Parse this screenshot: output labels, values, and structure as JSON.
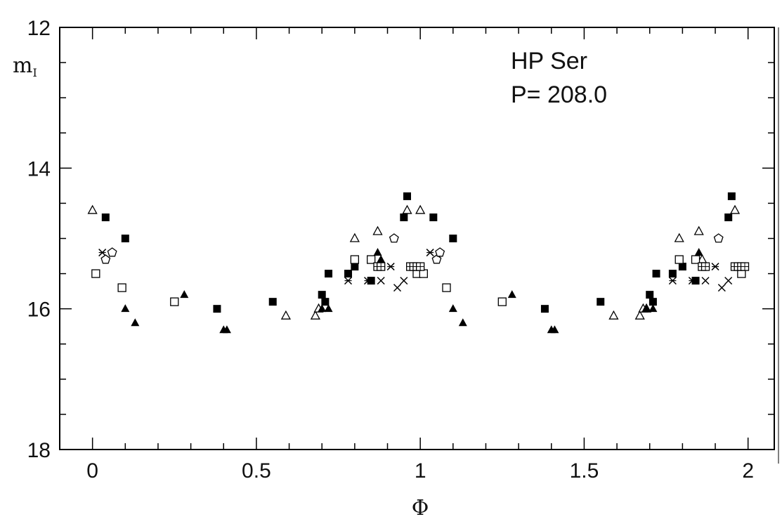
{
  "chart_data": {
    "type": "scatter",
    "title": "",
    "annotations": {
      "star": "HP Ser",
      "period": "P= 208.0"
    },
    "xlabel": "Φ",
    "ylabel": {
      "main": "m",
      "sub": "I"
    },
    "xlim": [
      -0.1,
      2.08
    ],
    "ylim": [
      18,
      12
    ],
    "y_inverted": true,
    "x_ticks": [
      "0",
      "0.5",
      "1",
      "1.5",
      "2"
    ],
    "y_ticks": [
      "12",
      "14",
      "16",
      "18"
    ],
    "grid": false,
    "series": [
      {
        "marker": "filled-square",
        "points": [
          [
            0.04,
            14.7
          ],
          [
            0.1,
            15.0
          ],
          [
            0.38,
            16.0
          ],
          [
            0.55,
            15.9
          ],
          [
            0.7,
            15.8
          ],
          [
            0.71,
            15.9
          ],
          [
            0.72,
            15.5
          ],
          [
            0.78,
            15.5
          ],
          [
            0.8,
            15.4
          ],
          [
            0.85,
            15.6
          ],
          [
            0.95,
            14.7
          ],
          [
            0.96,
            14.4
          ],
          [
            1.04,
            14.7
          ],
          [
            1.1,
            15.0
          ],
          [
            1.38,
            16.0
          ],
          [
            1.55,
            15.9
          ],
          [
            1.7,
            15.8
          ],
          [
            1.71,
            15.9
          ],
          [
            1.72,
            15.5
          ],
          [
            1.77,
            15.5
          ],
          [
            1.8,
            15.4
          ],
          [
            1.84,
            15.6
          ],
          [
            1.94,
            14.7
          ],
          [
            1.95,
            14.4
          ]
        ]
      },
      {
        "marker": "open-triangle",
        "points": [
          [
            0.0,
            14.6
          ],
          [
            0.59,
            16.1
          ],
          [
            0.68,
            16.1
          ],
          [
            0.69,
            16.0
          ],
          [
            0.8,
            15.0
          ],
          [
            0.87,
            14.9
          ],
          [
            0.96,
            14.6
          ],
          [
            1.0,
            14.6
          ],
          [
            1.59,
            16.1
          ],
          [
            1.67,
            16.1
          ],
          [
            1.68,
            16.0
          ],
          [
            1.69,
            16.0
          ],
          [
            1.79,
            15.0
          ],
          [
            1.85,
            14.9
          ],
          [
            1.86,
            15.3
          ],
          [
            1.96,
            14.6
          ]
        ]
      },
      {
        "marker": "filled-triangle",
        "points": [
          [
            0.1,
            16.0
          ],
          [
            0.13,
            16.2
          ],
          [
            0.28,
            15.8
          ],
          [
            0.4,
            16.3
          ],
          [
            0.41,
            16.3
          ],
          [
            0.7,
            16.0
          ],
          [
            0.72,
            16.0
          ],
          [
            0.87,
            15.2
          ],
          [
            0.88,
            15.3
          ],
          [
            1.1,
            16.0
          ],
          [
            1.13,
            16.2
          ],
          [
            1.28,
            15.8
          ],
          [
            1.4,
            16.3
          ],
          [
            1.41,
            16.3
          ],
          [
            1.69,
            16.0
          ],
          [
            1.71,
            16.0
          ],
          [
            1.85,
            15.2
          ]
        ]
      },
      {
        "marker": "open-square",
        "points": [
          [
            0.01,
            15.5
          ],
          [
            0.09,
            15.7
          ],
          [
            0.25,
            15.9
          ],
          [
            0.8,
            15.3
          ],
          [
            0.85,
            15.3
          ],
          [
            0.99,
            15.5
          ],
          [
            1.01,
            15.5
          ],
          [
            1.08,
            15.7
          ],
          [
            1.25,
            15.9
          ],
          [
            1.79,
            15.3
          ],
          [
            1.84,
            15.3
          ],
          [
            1.98,
            15.5
          ]
        ]
      },
      {
        "marker": "crossed-square",
        "points": [
          [
            0.87,
            15.4
          ],
          [
            0.88,
            15.4
          ],
          [
            0.97,
            15.4
          ],
          [
            0.98,
            15.4
          ],
          [
            0.99,
            15.4
          ],
          [
            1.0,
            15.4
          ],
          [
            1.86,
            15.4
          ],
          [
            1.87,
            15.4
          ],
          [
            1.96,
            15.4
          ],
          [
            1.97,
            15.4
          ],
          [
            1.98,
            15.4
          ],
          [
            1.99,
            15.4
          ]
        ]
      },
      {
        "marker": "cross",
        "points": [
          [
            0.88,
            15.6
          ],
          [
            0.93,
            15.7
          ],
          [
            0.95,
            15.6
          ],
          [
            1.87,
            15.6
          ],
          [
            1.92,
            15.7
          ],
          [
            1.94,
            15.6
          ]
        ]
      },
      {
        "marker": "star-cross",
        "points": [
          [
            0.03,
            15.2
          ],
          [
            0.78,
            15.6
          ],
          [
            0.84,
            15.6
          ],
          [
            0.91,
            15.4
          ],
          [
            1.03,
            15.2
          ],
          [
            1.77,
            15.6
          ],
          [
            1.83,
            15.6
          ],
          [
            1.9,
            15.4
          ]
        ]
      },
      {
        "marker": "open-pentagon",
        "points": [
          [
            0.04,
            15.3
          ],
          [
            0.06,
            15.2
          ],
          [
            0.92,
            15.0
          ],
          [
            1.05,
            15.3
          ],
          [
            1.06,
            15.2
          ],
          [
            1.91,
            15.0
          ]
        ]
      }
    ]
  }
}
